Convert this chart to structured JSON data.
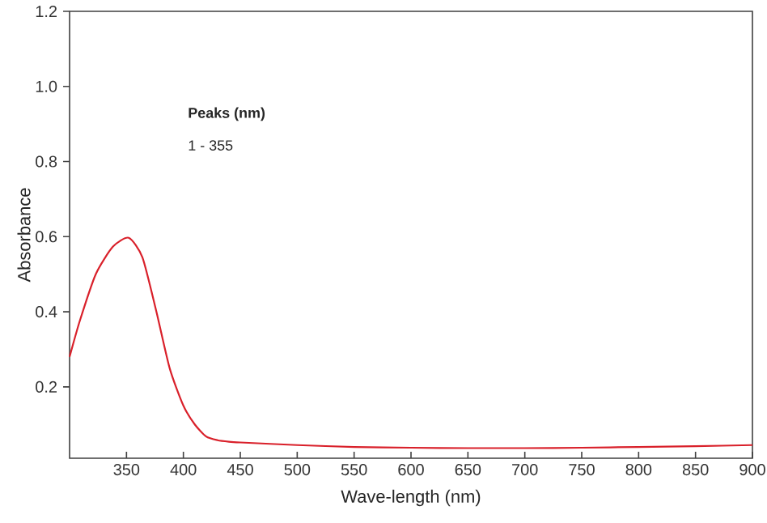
{
  "chart_data": {
    "type": "line",
    "xlabel": "Wave-length (nm)",
    "ylabel": "Absorbance",
    "annotations": [
      "**Peaks (nm)**",
      "1 - 355"
    ],
    "xlim": [
      300,
      900
    ],
    "xticks": [
      350,
      400,
      450,
      500,
      550,
      600,
      650,
      700,
      750,
      800,
      850,
      900
    ],
    "ylim": [
      0.01,
      1.2
    ],
    "yticks": [
      0.2,
      0.4,
      0.6,
      0.8,
      {
        "value": 1.0,
        "label": "1.0"
      },
      1.2
    ],
    "grid": false,
    "marker": "none",
    "line_style": "solid",
    "series": [
      {
        "color": "#d9202a",
        "x": [
          300,
          309,
          323,
          338,
          352,
          364,
          376,
          388,
          400,
          410,
          420,
          430,
          440,
          450,
          500,
          550,
          600,
          650,
          700,
          750,
          800,
          850,
          900
        ],
        "values": [
          0.28,
          0.376,
          0.5,
          0.573,
          0.597,
          0.545,
          0.404,
          0.249,
          0.15,
          0.1,
          0.068,
          0.058,
          0.054,
          0.052,
          0.045,
          0.04,
          0.038,
          0.037,
          0.037,
          0.038,
          0.04,
          0.042,
          0.045
        ]
      }
    ]
  }
}
